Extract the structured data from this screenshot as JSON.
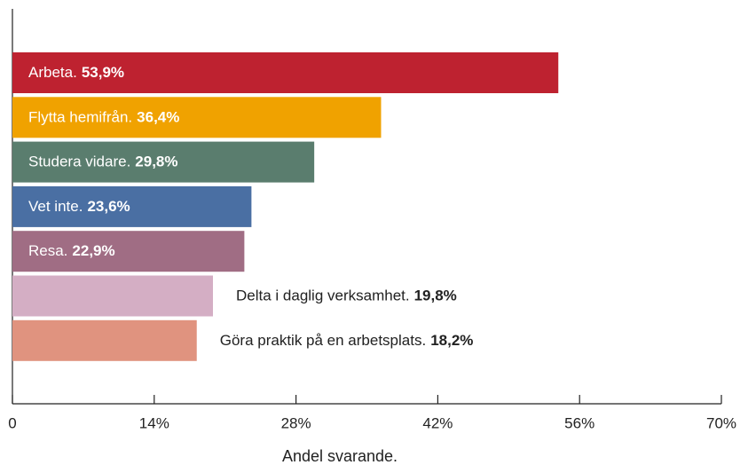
{
  "chart_data": {
    "type": "bar",
    "orientation": "horizontal",
    "categories": [
      "Arbeta.",
      "Flytta hemifrån.",
      "Studera vidare.",
      "Vet inte.",
      "Resa.",
      "Delta i daglig verksamhet.",
      "Göra praktik på en arbetsplats."
    ],
    "values": [
      53.9,
      36.4,
      29.8,
      23.6,
      22.9,
      19.8,
      18.2
    ],
    "value_labels": [
      "53,9%",
      "36,4%",
      "29,8%",
      "23,6%",
      "22,9%",
      "19,8%",
      "18,2%"
    ],
    "colors": [
      "#be2230",
      "#f0a200",
      "#5a7d6e",
      "#4a6fa3",
      "#a06d84",
      "#d4aec4",
      "#e0937f"
    ],
    "xlim": [
      0,
      70
    ],
    "xticks": [
      0,
      {
        "value": 14,
        "label": "14%"
      },
      {
        "value": 28,
        "label": "28%"
      },
      {
        "value": 42,
        "label": "42%"
      },
      {
        "value": 56,
        "label": "56%"
      },
      {
        "value": 70,
        "label": "70%"
      }
    ],
    "xlabel": "Andel svarande."
  }
}
